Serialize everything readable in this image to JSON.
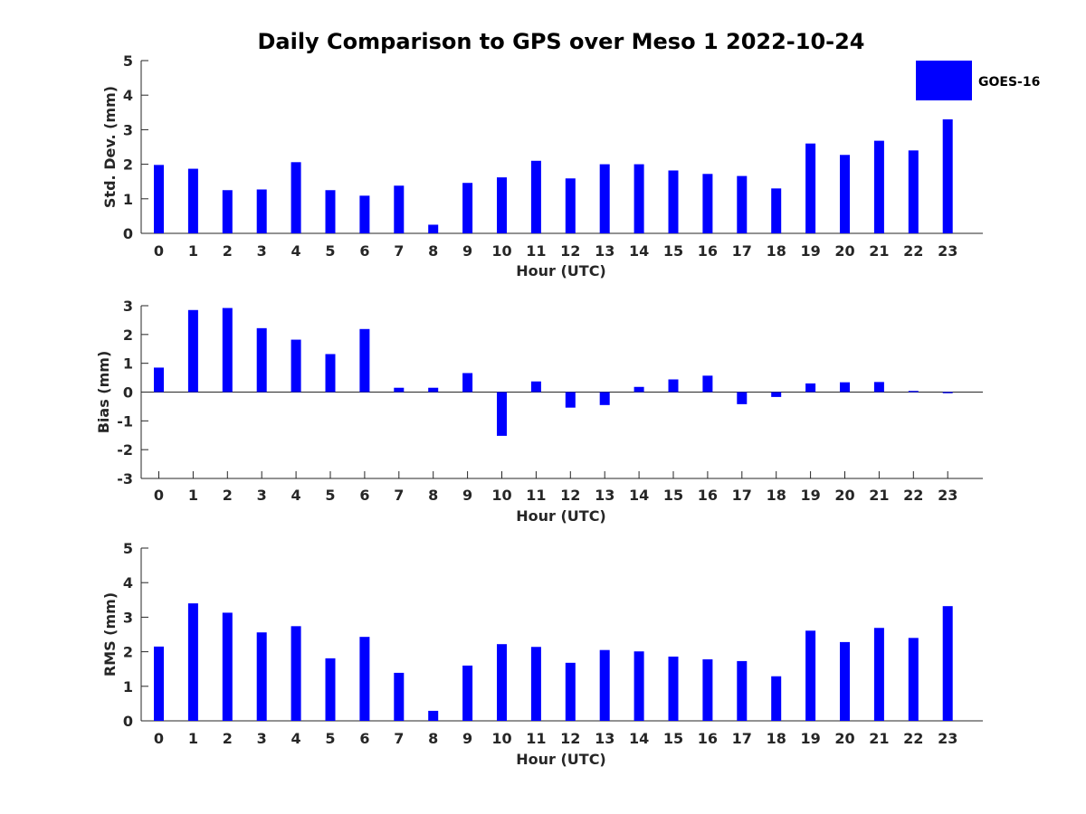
{
  "chart_data": [
    {
      "type": "bar",
      "title": "Daily Comparison to GPS over Meso 1 2022-10-24",
      "xlabel": "Hour (UTC)",
      "ylabel": "Std. Dev. (mm)",
      "ylim": [
        0,
        5
      ],
      "yticks": [
        0,
        1,
        2,
        3,
        4,
        5
      ],
      "categories": [
        "0",
        "1",
        "2",
        "3",
        "4",
        "5",
        "6",
        "7",
        "8",
        "9",
        "10",
        "11",
        "12",
        "13",
        "14",
        "15",
        "16",
        "17",
        "18",
        "19",
        "20",
        "21",
        "22",
        "23"
      ],
      "series": [
        {
          "name": "GOES-16",
          "values": [
            1.98,
            1.87,
            1.25,
            1.27,
            2.06,
            1.25,
            1.09,
            1.38,
            0.25,
            1.46,
            1.62,
            2.1,
            1.59,
            2.0,
            2.0,
            1.82,
            1.72,
            1.66,
            1.3,
            2.6,
            2.27,
            2.68,
            2.4,
            3.3
          ]
        }
      ],
      "legend": "top-right",
      "color": "#0000ff"
    },
    {
      "type": "bar",
      "xlabel": "Hour (UTC)",
      "ylabel": "Bias (mm)",
      "ylim": [
        -3,
        3
      ],
      "yticks": [
        -3,
        -2,
        -1,
        0,
        1,
        2,
        3
      ],
      "categories": [
        "0",
        "1",
        "2",
        "3",
        "4",
        "5",
        "6",
        "7",
        "8",
        "9",
        "10",
        "11",
        "12",
        "13",
        "14",
        "15",
        "16",
        "17",
        "18",
        "19",
        "20",
        "21",
        "22",
        "23"
      ],
      "series": [
        {
          "name": "GOES-16",
          "values": [
            0.85,
            2.85,
            2.92,
            2.22,
            1.82,
            1.32,
            2.19,
            0.15,
            0.15,
            0.66,
            -1.52,
            0.37,
            -0.54,
            -0.45,
            0.18,
            0.44,
            0.57,
            -0.42,
            -0.17,
            0.3,
            0.34,
            0.35,
            0.04,
            -0.04
          ]
        }
      ],
      "color": "#0000ff"
    },
    {
      "type": "bar",
      "xlabel": "Hour (UTC)",
      "ylabel": "RMS (mm)",
      "ylim": [
        0,
        5
      ],
      "yticks": [
        0,
        1,
        2,
        3,
        4,
        5
      ],
      "categories": [
        "0",
        "1",
        "2",
        "3",
        "4",
        "5",
        "6",
        "7",
        "8",
        "9",
        "10",
        "11",
        "12",
        "13",
        "14",
        "15",
        "16",
        "17",
        "18",
        "19",
        "20",
        "21",
        "22",
        "23"
      ],
      "series": [
        {
          "name": "GOES-16",
          "values": [
            2.15,
            3.4,
            3.13,
            2.56,
            2.74,
            1.81,
            2.43,
            1.39,
            0.29,
            1.6,
            2.22,
            2.14,
            1.68,
            2.05,
            2.01,
            1.86,
            1.78,
            1.73,
            1.29,
            2.61,
            2.28,
            2.69,
            2.4,
            3.32
          ]
        }
      ],
      "color": "#0000ff"
    }
  ]
}
